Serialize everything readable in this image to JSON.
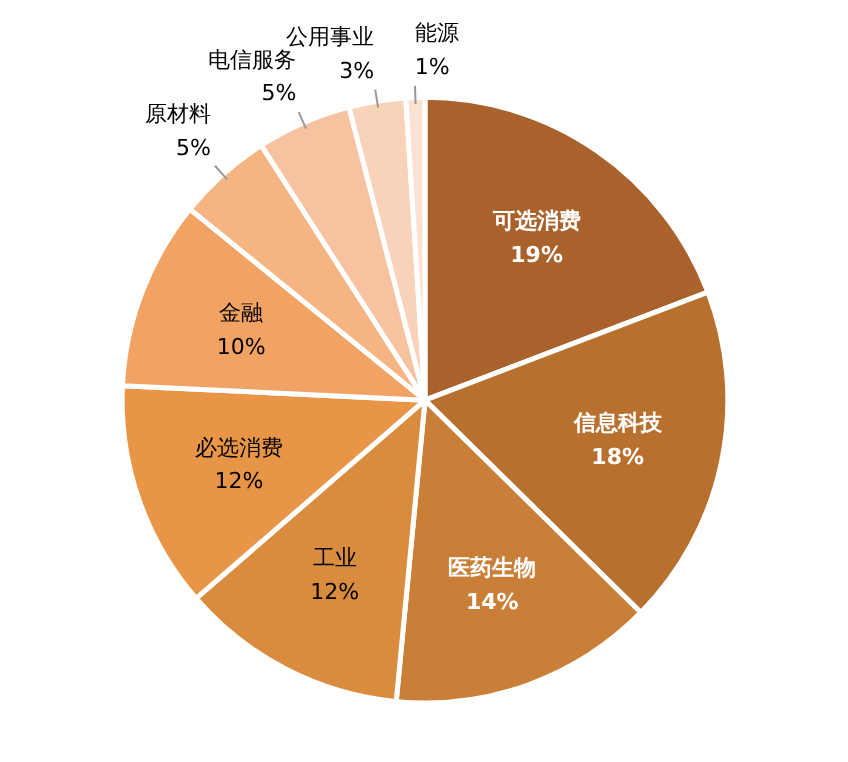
{
  "chart_data": {
    "type": "pie",
    "categories": [
      "可选消费",
      "信息科技",
      "医药生物",
      "工业",
      "必选消费",
      "金融",
      "原材料",
      "电信服务",
      "公用事业",
      "能源"
    ],
    "values": [
      19,
      18,
      14,
      12,
      12,
      10,
      5,
      5,
      3,
      1
    ],
    "value_labels": [
      "19%",
      "18%",
      "14%",
      "12%",
      "12%",
      "10%",
      "5%",
      "5%",
      "3%",
      "1%"
    ],
    "colors": [
      "#a9622b",
      "#b8702f",
      "#c97f37",
      "#d98b3e",
      "#e89548",
      "#f2a262",
      "#f5b482",
      "#f6c29f",
      "#f8d2b9",
      "#fbe1d1"
    ]
  }
}
